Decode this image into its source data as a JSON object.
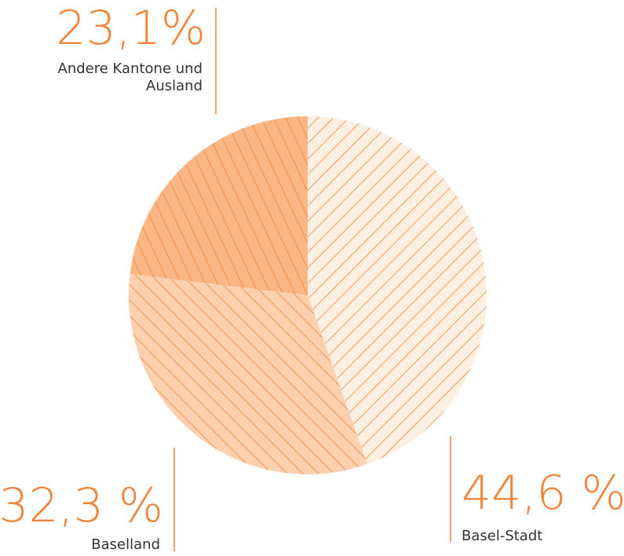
{
  "chart_data": {
    "type": "pie",
    "categories": [
      "Basel-Stadt",
      "Baselland",
      "Andere Kantone und Ausland"
    ],
    "values": [
      44.6,
      32.3,
      23.1
    ],
    "value_labels": [
      "44,6 %",
      "32,3 %",
      "23,1%"
    ],
    "colors": [
      "#fdf0e3",
      "#fdd0b0",
      "#fbb685"
    ],
    "hatch_color": "#f0853a"
  }
}
